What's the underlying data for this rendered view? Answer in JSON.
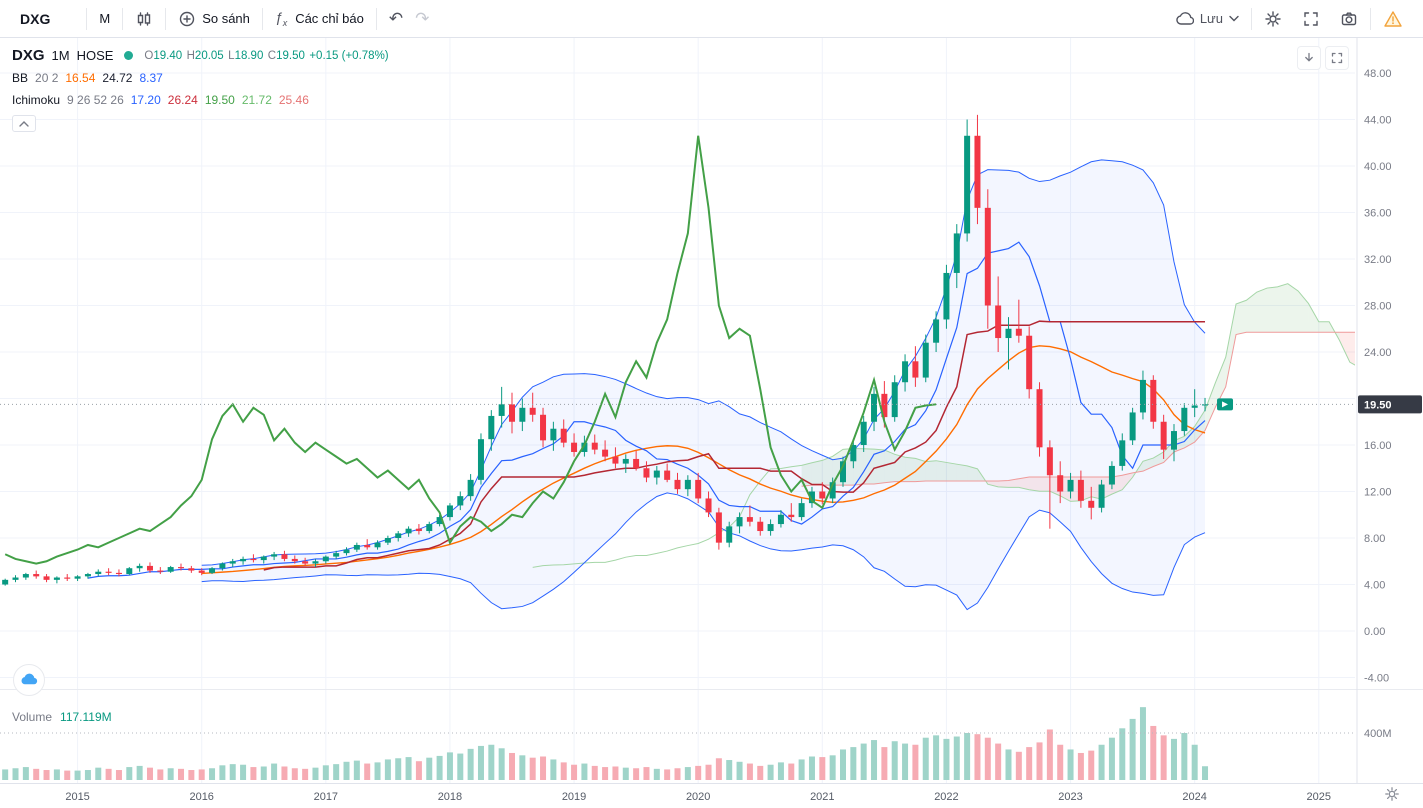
{
  "toolbar": {
    "symbol": "DXG",
    "interval": "M",
    "compare": "So sánh",
    "indicators": "Các chỉ báo",
    "save": "Lưu"
  },
  "legend": {
    "symbol": "DXG",
    "interval": "1M",
    "exchange": "HOSE",
    "o_label": "O",
    "o": "19.40",
    "h_label": "H",
    "h": "20.05",
    "l_label": "L",
    "l": "18.90",
    "c_label": "C",
    "c": "19.50",
    "change": "+0.15 (+0.78%)",
    "bb": {
      "name": "BB",
      "params": "20 2",
      "basis": "16.54",
      "upper": "24.72",
      "lower": "8.37"
    },
    "ichimoku": {
      "name": "Ichimoku",
      "params": "9 26 52 26",
      "v1": "17.20",
      "v2": "26.24",
      "v3": "19.50",
      "v4": "21.72",
      "v5": "25.46"
    }
  },
  "volume_pane": {
    "label": "Volume",
    "value": "117.119M"
  },
  "price_axis": {
    "ticks": [
      "48.00",
      "44.00",
      "40.00",
      "36.00",
      "32.00",
      "28.00",
      "24.00",
      "16.00",
      "12.00",
      "8.00",
      "4.00",
      "0.00",
      "-4.00"
    ],
    "last": "19.50",
    "volume_tick": "400M"
  },
  "time_axis": {
    "years": [
      "2015",
      "2016",
      "2017",
      "2018",
      "2019",
      "2020",
      "2021",
      "2022",
      "2023",
      "2024",
      "2025"
    ]
  },
  "colors": {
    "up": "#089981",
    "down": "#f23645",
    "vol_up": "#9fd4c9",
    "vol_down": "#f6abb3",
    "bb_basis": "#ff6d00",
    "bb_band": "#2962ff",
    "bb_fill": "rgba(41,98,255,0.055)",
    "tenkan": "#2962ff",
    "kijun": "#b32733",
    "chikou": "#43a047",
    "lead1": "#a5d6a7",
    "lead2": "#ef9a9a",
    "cloud_up": "rgba(67,160,71,0.10)",
    "cloud_down": "rgba(244,67,54,0.10)",
    "grid": "#f0f3fa",
    "axis_text": "#787b86",
    "last_price_bg": "#363a45"
  },
  "chart_data": {
    "type": "candlestick",
    "symbol": "DXG",
    "interval": "1M",
    "exchange": "HOSE",
    "title": "DXG 1M HOSE",
    "start": "2014-06",
    "columns": [
      "open",
      "high",
      "low",
      "close",
      "volume_m"
    ],
    "indicators": [
      {
        "name": "Bollinger Bands",
        "length": 20,
        "mult": 2
      },
      {
        "name": "Ichimoku",
        "conversion": 9,
        "base": 26,
        "lagging": 52,
        "displacement": 26
      }
    ],
    "ylim": [
      -6,
      50
    ],
    "volume_axis_tick_m": 400,
    "candles": [
      [
        4.0,
        4.5,
        3.9,
        4.4,
        90
      ],
      [
        4.4,
        4.8,
        4.2,
        4.6,
        100
      ],
      [
        4.6,
        5.0,
        4.4,
        4.9,
        110
      ],
      [
        4.9,
        5.2,
        4.5,
        4.7,
        95
      ],
      [
        4.7,
        4.9,
        4.2,
        4.4,
        85
      ],
      [
        4.4,
        4.7,
        4.1,
        4.6,
        90
      ],
      [
        4.6,
        4.9,
        4.3,
        4.5,
        80
      ],
      [
        4.5,
        4.8,
        4.3,
        4.7,
        80
      ],
      [
        4.7,
        5.0,
        4.5,
        4.9,
        85
      ],
      [
        4.9,
        5.3,
        4.7,
        5.1,
        105
      ],
      [
        5.1,
        5.4,
        4.8,
        5.0,
        95
      ],
      [
        5.0,
        5.3,
        4.7,
        4.9,
        85
      ],
      [
        4.9,
        5.5,
        4.8,
        5.4,
        110
      ],
      [
        5.4,
        5.8,
        5.1,
        5.6,
        120
      ],
      [
        5.6,
        5.9,
        5.0,
        5.2,
        105
      ],
      [
        5.2,
        5.5,
        4.9,
        5.1,
        90
      ],
      [
        5.1,
        5.6,
        5.0,
        5.5,
        100
      ],
      [
        5.5,
        5.8,
        5.2,
        5.4,
        95
      ],
      [
        5.4,
        5.6,
        5.0,
        5.2,
        85
      ],
      [
        5.2,
        5.4,
        4.8,
        5.0,
        90
      ],
      [
        5.0,
        5.5,
        4.9,
        5.4,
        100
      ],
      [
        5.4,
        5.9,
        5.2,
        5.8,
        125
      ],
      [
        5.8,
        6.2,
        5.5,
        6.0,
        135
      ],
      [
        6.0,
        6.4,
        5.7,
        6.2,
        130
      ],
      [
        6.2,
        6.6,
        5.9,
        6.1,
        110
      ],
      [
        6.1,
        6.5,
        5.8,
        6.4,
        115
      ],
      [
        6.4,
        6.8,
        6.1,
        6.6,
        140
      ],
      [
        6.6,
        6.9,
        6.0,
        6.2,
        115
      ],
      [
        6.2,
        6.5,
        5.8,
        6.0,
        100
      ],
      [
        6.0,
        6.3,
        5.6,
        5.8,
        95
      ],
      [
        5.8,
        6.2,
        5.5,
        6.0,
        105
      ],
      [
        6.0,
        6.5,
        5.8,
        6.4,
        125
      ],
      [
        6.4,
        6.9,
        6.2,
        6.7,
        135
      ],
      [
        6.7,
        7.2,
        6.5,
        7.0,
        155
      ],
      [
        7.0,
        7.6,
        6.8,
        7.4,
        165
      ],
      [
        7.4,
        7.9,
        7.0,
        7.2,
        140
      ],
      [
        7.2,
        7.8,
        7.0,
        7.6,
        150
      ],
      [
        7.6,
        8.2,
        7.4,
        8.0,
        175
      ],
      [
        8.0,
        8.6,
        7.7,
        8.4,
        185
      ],
      [
        8.4,
        9.0,
        8.1,
        8.8,
        195
      ],
      [
        8.8,
        9.2,
        8.3,
        8.6,
        160
      ],
      [
        8.6,
        9.4,
        8.4,
        9.2,
        190
      ],
      [
        9.2,
        10.0,
        9.0,
        9.8,
        205
      ],
      [
        9.8,
        11.0,
        9.5,
        10.8,
        235
      ],
      [
        10.8,
        12.0,
        10.4,
        11.6,
        225
      ],
      [
        11.6,
        13.5,
        11.2,
        13.0,
        265
      ],
      [
        13.0,
        17.0,
        12.6,
        16.5,
        290
      ],
      [
        16.5,
        19.0,
        15.5,
        18.5,
        300
      ],
      [
        18.5,
        21.0,
        17.5,
        19.5,
        270
      ],
      [
        19.5,
        20.5,
        17.0,
        18.0,
        230
      ],
      [
        18.0,
        20.0,
        17.2,
        19.2,
        210
      ],
      [
        19.2,
        20.5,
        18.0,
        18.6,
        190
      ],
      [
        18.6,
        19.2,
        15.8,
        16.4,
        200
      ],
      [
        16.4,
        18.0,
        15.5,
        17.4,
        175
      ],
      [
        17.4,
        18.2,
        15.8,
        16.2,
        150
      ],
      [
        16.2,
        17.0,
        15.0,
        15.4,
        130
      ],
      [
        15.4,
        16.8,
        15.0,
        16.2,
        140
      ],
      [
        16.2,
        16.9,
        15.2,
        15.6,
        120
      ],
      [
        15.6,
        16.4,
        14.6,
        15.0,
        110
      ],
      [
        15.0,
        15.8,
        14.0,
        14.4,
        115
      ],
      [
        14.4,
        15.2,
        13.6,
        14.8,
        105
      ],
      [
        14.8,
        15.5,
        13.8,
        14.0,
        100
      ],
      [
        14.0,
        14.6,
        12.8,
        13.2,
        110
      ],
      [
        13.2,
        14.2,
        12.6,
        13.8,
        95
      ],
      [
        13.8,
        14.4,
        12.8,
        13.0,
        90
      ],
      [
        13.0,
        13.6,
        11.8,
        12.2,
        100
      ],
      [
        12.2,
        13.4,
        11.6,
        13.0,
        110
      ],
      [
        13.0,
        13.6,
        11.0,
        11.4,
        120
      ],
      [
        11.4,
        12.0,
        9.8,
        10.2,
        130
      ],
      [
        10.2,
        10.6,
        7.0,
        7.6,
        185
      ],
      [
        7.6,
        9.4,
        7.2,
        9.0,
        170
      ],
      [
        9.0,
        10.2,
        8.4,
        9.8,
        155
      ],
      [
        9.8,
        10.8,
        9.0,
        9.4,
        140
      ],
      [
        9.4,
        9.8,
        8.2,
        8.6,
        120
      ],
      [
        8.6,
        9.6,
        8.2,
        9.2,
        130
      ],
      [
        9.2,
        10.4,
        8.9,
        10.0,
        150
      ],
      [
        10.0,
        11.0,
        9.4,
        9.8,
        140
      ],
      [
        9.8,
        11.4,
        9.5,
        11.0,
        175
      ],
      [
        11.0,
        12.4,
        10.6,
        12.0,
        200
      ],
      [
        12.0,
        12.8,
        10.9,
        11.4,
        195
      ],
      [
        11.4,
        13.2,
        11.0,
        12.8,
        210
      ],
      [
        12.8,
        15.0,
        12.4,
        14.6,
        260
      ],
      [
        14.6,
        16.5,
        14.0,
        16.0,
        280
      ],
      [
        16.0,
        18.5,
        15.4,
        18.0,
        310
      ],
      [
        18.0,
        21.0,
        17.2,
        20.4,
        340
      ],
      [
        20.4,
        21.5,
        17.5,
        18.4,
        280
      ],
      [
        18.4,
        22.0,
        18.0,
        21.4,
        330
      ],
      [
        21.4,
        23.8,
        20.6,
        23.2,
        310
      ],
      [
        23.2,
        24.5,
        21.0,
        21.8,
        300
      ],
      [
        21.8,
        25.5,
        21.4,
        24.8,
        360
      ],
      [
        24.8,
        27.5,
        24.0,
        26.8,
        380
      ],
      [
        26.8,
        31.5,
        26.0,
        30.8,
        350
      ],
      [
        30.8,
        35.0,
        29.5,
        34.2,
        370
      ],
      [
        34.2,
        44.0,
        33.5,
        42.6,
        400
      ],
      [
        42.6,
        44.4,
        35.0,
        36.4,
        390
      ],
      [
        36.4,
        38.0,
        26.0,
        28.0,
        360
      ],
      [
        28.0,
        30.5,
        24.0,
        25.2,
        310
      ],
      [
        25.2,
        27.0,
        22.5,
        26.0,
        260
      ],
      [
        26.0,
        28.5,
        24.8,
        25.4,
        240
      ],
      [
        25.4,
        26.2,
        20.0,
        20.8,
        280
      ],
      [
        20.8,
        21.4,
        15.0,
        15.8,
        320
      ],
      [
        15.8,
        16.4,
        8.8,
        13.4,
        430
      ],
      [
        13.4,
        14.6,
        11.0,
        12.0,
        300
      ],
      [
        12.0,
        13.6,
        11.4,
        13.0,
        260
      ],
      [
        13.0,
        13.8,
        10.6,
        11.2,
        230
      ],
      [
        11.2,
        12.4,
        9.6,
        10.6,
        250
      ],
      [
        10.6,
        13.0,
        10.2,
        12.6,
        300
      ],
      [
        12.6,
        14.6,
        12.2,
        14.2,
        360
      ],
      [
        14.2,
        17.0,
        13.8,
        16.4,
        440
      ],
      [
        16.4,
        19.2,
        16.0,
        18.8,
        520
      ],
      [
        18.8,
        22.4,
        18.2,
        21.6,
        620
      ],
      [
        21.6,
        22.0,
        17.4,
        18.0,
        460
      ],
      [
        18.0,
        18.6,
        14.8,
        15.6,
        380
      ],
      [
        15.6,
        17.8,
        14.6,
        17.2,
        350
      ],
      [
        17.2,
        19.6,
        16.8,
        19.2,
        400
      ],
      [
        19.2,
        20.8,
        18.4,
        19.4,
        300
      ],
      [
        19.4,
        20.05,
        18.9,
        19.5,
        117.119
      ]
    ]
  }
}
